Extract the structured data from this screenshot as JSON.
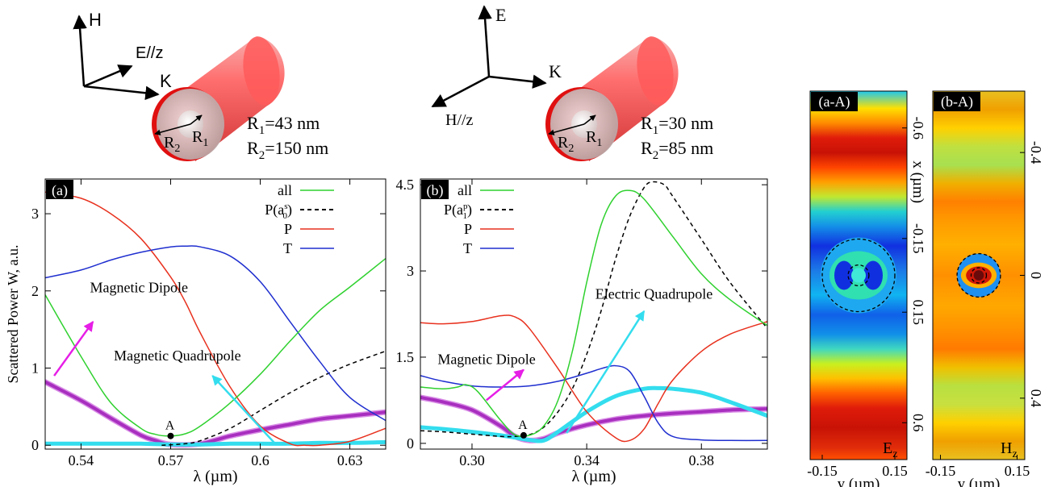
{
  "colors": {
    "all": "#2fd12f",
    "Pas": "#000000",
    "P": "#e8311e",
    "T": "#1f2fcf",
    "magenta": "#e61ee6",
    "cyan": "#33ddee",
    "purple": "#a82fbf",
    "purple_light": "#d98de6"
  },
  "schematic_a": {
    "axis_up": "H",
    "axis_diag": "E//z",
    "axis_right": "K",
    "r1_label": "R",
    "r1_sub": "1",
    "r2_label": "R",
    "r2_sub": "2",
    "line1": "R",
    "line1_sub": "1",
    "line1_rest": "=43 nm",
    "line2": "R",
    "line2_sub": "2",
    "line2_rest": "=150 nm"
  },
  "schematic_b": {
    "axis_up": "E",
    "axis_diag": "H//z",
    "axis_right": "K",
    "r1_label": "R",
    "r1_sub": "1",
    "r2_label": "R",
    "r2_sub": "2",
    "line1": "R",
    "line1_sub": "1",
    "line1_rest": "=30 nm",
    "line2": "R",
    "line2_sub": "2",
    "line2_rest": "=85 nm"
  },
  "chart_data": [
    {
      "type": "line",
      "panel_label": "(a)",
      "ylabel": "Scattered Power W, a.u.",
      "xlabel": "λ  (µm)",
      "xlim": [
        0.528,
        0.642
      ],
      "ylim": [
        -0.05,
        3.45
      ],
      "xticks": [
        0.54,
        0.57,
        0.6,
        0.63
      ],
      "xtick_labels": [
        "0.54",
        "0.57",
        "0.6",
        "0.63"
      ],
      "yticks": [
        0,
        1,
        2,
        3
      ],
      "ytick_labels": [
        "0",
        "1",
        "2",
        "3"
      ],
      "legend": {
        "placement": "top-right",
        "entries": [
          {
            "key": "all",
            "label": "all"
          },
          {
            "key": "Pas",
            "label": "P(a",
            "sup": "s",
            "sub": "0",
            "close": ")"
          },
          {
            "key": "P",
            "label": "P"
          },
          {
            "key": "T",
            "label": "T"
          }
        ]
      },
      "series": [
        {
          "key": "all",
          "style": "thin",
          "x": [
            0.528,
            0.54,
            0.55,
            0.56,
            0.565,
            0.57,
            0.575,
            0.58,
            0.59,
            0.6,
            0.61,
            0.62,
            0.63,
            0.642
          ],
          "y": [
            1.95,
            1.15,
            0.55,
            0.22,
            0.14,
            0.12,
            0.15,
            0.25,
            0.55,
            0.92,
            1.35,
            1.75,
            2.05,
            2.42
          ]
        },
        {
          "key": "Pas",
          "style": "dashed",
          "x": [
            0.567,
            0.575,
            0.58,
            0.59,
            0.6,
            0.61,
            0.62,
            0.63,
            0.642
          ],
          "y": [
            0.0,
            0.02,
            0.06,
            0.22,
            0.45,
            0.68,
            0.88,
            1.05,
            1.22
          ]
        },
        {
          "key": "P",
          "style": "thin",
          "x": [
            0.528,
            0.54,
            0.55,
            0.56,
            0.57,
            0.575,
            0.58,
            0.59,
            0.6,
            0.61,
            0.615,
            0.62,
            0.63,
            0.642
          ],
          "y": [
            3.28,
            3.2,
            3.0,
            2.68,
            2.18,
            1.85,
            1.45,
            0.75,
            0.25,
            0.02,
            0.0,
            0.0,
            0.05,
            0.22
          ]
        },
        {
          "key": "T",
          "style": "thin",
          "x": [
            0.528,
            0.54,
            0.55,
            0.56,
            0.57,
            0.575,
            0.58,
            0.59,
            0.6,
            0.61,
            0.62,
            0.63,
            0.642
          ],
          "y": [
            2.17,
            2.27,
            2.4,
            2.5,
            2.57,
            2.58,
            2.57,
            2.45,
            2.12,
            1.6,
            1.08,
            0.62,
            0.32
          ]
        },
        {
          "key": "purple",
          "style": "thick",
          "x": [
            0.528,
            0.54,
            0.55,
            0.56,
            0.565,
            0.57,
            0.58,
            0.59,
            0.6,
            0.61,
            0.62,
            0.63,
            0.642
          ],
          "y": [
            0.82,
            0.58,
            0.35,
            0.13,
            0.06,
            0.01,
            0.02,
            0.12,
            0.2,
            0.27,
            0.34,
            0.38,
            0.43
          ]
        },
        {
          "key": "cyan",
          "style": "thick",
          "x": [
            0.528,
            0.54,
            0.55,
            0.56,
            0.57,
            0.58,
            0.59,
            0.6,
            0.61,
            0.62,
            0.63,
            0.642
          ],
          "y": [
            0.02,
            0.02,
            0.02,
            0.02,
            0.01,
            0.01,
            0.02,
            0.02,
            0.02,
            0.03,
            0.03,
            0.04
          ]
        }
      ],
      "point": {
        "label": "A",
        "x": 0.57,
        "y": 0.12
      },
      "annotations": [
        {
          "text": "Magnetic Dipole",
          "color": "magenta",
          "tx": 0.543,
          "ty": 1.98,
          "from": [
            0.531,
            0.9
          ],
          "to": [
            0.544,
            1.6
          ]
        },
        {
          "text": "Magnetic Quadrupole",
          "color": "cyan",
          "tx": 0.551,
          "ty": 1.1,
          "from": [
            0.605,
            0.02
          ],
          "to": [
            0.584,
            0.9
          ]
        }
      ]
    },
    {
      "type": "line",
      "panel_label": "(b)",
      "ylabel": "",
      "xlabel": "λ  (µm)",
      "xlim": [
        0.282,
        0.403
      ],
      "ylim": [
        -0.1,
        4.6
      ],
      "xticks": [
        0.3,
        0.34,
        0.38
      ],
      "xtick_labels": [
        "0.30",
        "0.34",
        "0.38"
      ],
      "yticks": [
        0,
        1.5,
        3,
        4.5
      ],
      "ytick_labels": [
        "0",
        "1.5",
        "3",
        "4.5"
      ],
      "legend": {
        "placement": "top-left",
        "entries": [
          {
            "key": "all",
            "label": "all"
          },
          {
            "key": "Pas",
            "label": "P(a",
            "sup": "p",
            "sub": "1",
            "close": ")"
          },
          {
            "key": "P",
            "label": "P"
          },
          {
            "key": "T",
            "label": "T"
          }
        ]
      },
      "series": [
        {
          "key": "all",
          "style": "thin",
          "x": [
            0.282,
            0.29,
            0.295,
            0.298,
            0.302,
            0.31,
            0.315,
            0.32,
            0.325,
            0.33,
            0.335,
            0.34,
            0.345,
            0.35,
            0.355,
            0.36,
            0.37,
            0.38,
            0.39,
            0.403
          ],
          "y": [
            0.98,
            0.95,
            0.98,
            1.02,
            0.9,
            0.4,
            0.15,
            0.14,
            0.3,
            0.75,
            1.6,
            2.8,
            3.8,
            4.3,
            4.4,
            4.25,
            3.6,
            2.95,
            2.5,
            2.05
          ]
        },
        {
          "key": "Pas",
          "style": "dashed",
          "x": [
            0.282,
            0.29,
            0.3,
            0.31,
            0.315,
            0.32,
            0.325,
            0.33,
            0.335,
            0.34,
            0.345,
            0.35,
            0.355,
            0.36,
            0.363,
            0.367,
            0.37,
            0.38,
            0.39,
            0.403
          ],
          "y": [
            0.22,
            0.2,
            0.16,
            0.12,
            0.12,
            0.15,
            0.28,
            0.55,
            0.95,
            1.55,
            2.3,
            3.2,
            3.95,
            4.45,
            4.55,
            4.5,
            4.3,
            3.55,
            2.8,
            2.0
          ]
        },
        {
          "key": "P",
          "style": "thin",
          "x": [
            0.282,
            0.29,
            0.3,
            0.31,
            0.315,
            0.32,
            0.33,
            0.34,
            0.35,
            0.355,
            0.36,
            0.365,
            0.37,
            0.38,
            0.39,
            0.403
          ],
          "y": [
            2.1,
            2.08,
            2.12,
            2.22,
            2.2,
            2.0,
            1.3,
            0.55,
            0.1,
            0.05,
            0.25,
            0.7,
            1.1,
            1.6,
            1.9,
            2.12
          ]
        },
        {
          "key": "T",
          "style": "thin",
          "x": [
            0.282,
            0.29,
            0.3,
            0.31,
            0.32,
            0.33,
            0.34,
            0.345,
            0.35,
            0.355,
            0.36,
            0.365,
            0.37,
            0.38,
            0.39,
            0.403
          ],
          "y": [
            1.18,
            1.08,
            1.0,
            0.98,
            1.0,
            1.08,
            1.22,
            1.3,
            1.35,
            1.25,
            0.82,
            0.35,
            0.12,
            0.06,
            0.05,
            0.05
          ]
        },
        {
          "key": "purple",
          "style": "thick",
          "x": [
            0.282,
            0.29,
            0.3,
            0.31,
            0.315,
            0.32,
            0.325,
            0.33,
            0.34,
            0.35,
            0.36,
            0.37,
            0.38,
            0.39,
            0.403
          ],
          "y": [
            0.8,
            0.72,
            0.58,
            0.3,
            0.12,
            0.05,
            0.08,
            0.18,
            0.32,
            0.42,
            0.48,
            0.52,
            0.55,
            0.58,
            0.6
          ]
        },
        {
          "key": "cyan",
          "style": "thick",
          "x": [
            0.282,
            0.29,
            0.3,
            0.31,
            0.315,
            0.32,
            0.325,
            0.33,
            0.34,
            0.35,
            0.36,
            0.365,
            0.37,
            0.38,
            0.39,
            0.403
          ],
          "y": [
            0.28,
            0.25,
            0.2,
            0.14,
            0.1,
            0.06,
            0.05,
            0.2,
            0.55,
            0.82,
            0.95,
            0.96,
            0.95,
            0.88,
            0.72,
            0.48
          ]
        }
      ],
      "point": {
        "label": "A",
        "x": 0.318,
        "y": 0.14
      },
      "annotations": [
        {
          "text": "Magnetic Dipole",
          "color": "magenta",
          "tx": 0.288,
          "ty": 1.38,
          "from": [
            0.305,
            0.75
          ],
          "to": [
            0.318,
            1.28
          ]
        },
        {
          "text": "Electric Quadrupole",
          "color": "cyan",
          "tx": 0.343,
          "ty": 2.52,
          "from": [
            0.333,
            0.18
          ],
          "to": [
            0.36,
            2.3
          ]
        }
      ]
    },
    {
      "type": "heatmap",
      "panel_label": "(a-A)",
      "field_label": "E",
      "field_sub": "z",
      "xlabel": "y  (µm)",
      "ylabel": "x  (µm)",
      "xlim": [
        -0.2,
        0.2
      ],
      "ylim": [
        -0.75,
        0.75
      ],
      "xticks": [
        -0.15,
        0.15
      ],
      "xtick_labels": [
        "-0.15",
        "0.15"
      ],
      "yticks": [
        -0.6,
        -0.15,
        0.15,
        0.6
      ],
      "ytick_labels": [
        "-0.6",
        "-0.15",
        "0.15",
        "0.6"
      ],
      "bands": [
        [
          -0.75,
          "#1ec8ee"
        ],
        [
          -0.68,
          "#ffe000"
        ],
        [
          -0.62,
          "#ff8a00"
        ],
        [
          -0.56,
          "#e01c0a"
        ],
        [
          -0.5,
          "#c81206"
        ],
        [
          -0.44,
          "#ff4400"
        ],
        [
          -0.38,
          "#ffa000"
        ],
        [
          -0.32,
          "#c0e830"
        ],
        [
          -0.26,
          "#22d0d0"
        ],
        [
          -0.2,
          "#1490e8"
        ],
        [
          -0.12,
          "#1030e0"
        ],
        [
          -0.02,
          "#1c7ae8"
        ],
        [
          0.08,
          "#10b4f0"
        ],
        [
          0.16,
          "#1060e8"
        ],
        [
          0.24,
          "#1090e8"
        ],
        [
          0.3,
          "#40d8c0"
        ],
        [
          0.36,
          "#c8f020"
        ],
        [
          0.42,
          "#ffc000"
        ],
        [
          0.48,
          "#ff6000"
        ],
        [
          0.54,
          "#e01c0a"
        ],
        [
          0.62,
          "#c81206"
        ],
        [
          0.7,
          "#e02c0a"
        ],
        [
          0.75,
          "#ff5000"
        ]
      ],
      "rings": [
        0.15,
        0.043
      ]
    },
    {
      "type": "heatmap",
      "panel_label": "(b-A)",
      "field_label": "H",
      "field_sub": "z",
      "xlabel": "y  (µm)",
      "ylabel": "",
      "xlim": [
        -0.18,
        0.18
      ],
      "ylim": [
        -0.6,
        0.6
      ],
      "xticks": [
        -0.15,
        0.15
      ],
      "xtick_labels": [
        "-0.15",
        "0.15"
      ],
      "yticks": [
        -0.4,
        0,
        0.4
      ],
      "ytick_labels": [
        "-0.4",
        "0",
        "0.4"
      ],
      "bands": [
        [
          -0.6,
          "#e8c020"
        ],
        [
          -0.54,
          "#f0a000"
        ],
        [
          -0.48,
          "#ffd000"
        ],
        [
          -0.42,
          "#c0e040"
        ],
        [
          -0.36,
          "#a8e050"
        ],
        [
          -0.3,
          "#f0b000"
        ],
        [
          -0.24,
          "#ff8000"
        ],
        [
          -0.18,
          "#ff9a00"
        ],
        [
          -0.1,
          "#ffb000"
        ],
        [
          0,
          "#ff9000"
        ],
        [
          0.1,
          "#ffa800"
        ],
        [
          0.18,
          "#ff9000"
        ],
        [
          0.24,
          "#ff7a00"
        ],
        [
          0.3,
          "#f0c000"
        ],
        [
          0.36,
          "#b8e040"
        ],
        [
          0.42,
          "#c8e040"
        ],
        [
          0.48,
          "#ffd000"
        ],
        [
          0.54,
          "#f0a000"
        ],
        [
          0.6,
          "#e8c020"
        ]
      ],
      "rings": [
        0.085,
        0.03
      ]
    }
  ]
}
